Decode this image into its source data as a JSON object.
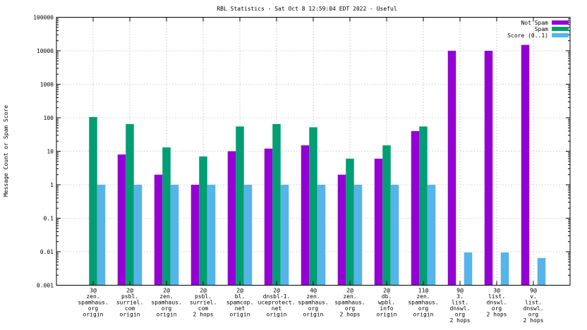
{
  "chart_data": {
    "type": "bar",
    "title": "RBL Statistics - Sat Oct  8 12:59:04 EDT 2022 - Useful",
    "xlabel": "",
    "ylabel": "Message Count or Spam Score",
    "yscale": "log",
    "ylim": [
      0.001,
      100000
    ],
    "yticks": [
      "0.001",
      "0.01",
      "0.1",
      "1",
      "10",
      "100",
      "1000",
      "10000",
      "100000"
    ],
    "legend_position": "top-right",
    "categories": [
      [
        "3@",
        "zen.",
        "spamhaus.",
        "org",
        "origin"
      ],
      [
        "2@",
        "psbl.",
        "surriel.",
        "com",
        "origin"
      ],
      [
        "2@",
        "zen.",
        "spamhaus.",
        "org",
        "origin"
      ],
      [
        "2@",
        "psbl.",
        "surriel.",
        "com",
        "2 hops"
      ],
      [
        "2@",
        "bl.",
        "spamcop.",
        "net",
        "origin"
      ],
      [
        "2@",
        "dnsbl-1.",
        "uceprotect.",
        "net",
        "origin"
      ],
      [
        "4@",
        "zen.",
        "spamhaus.",
        "org",
        "origin"
      ],
      [
        "2@",
        "zen.",
        "spamhaus.",
        "org",
        "2 hops"
      ],
      [
        "2@",
        "db.",
        "wpbl.",
        "info",
        "origin"
      ],
      [
        "11@",
        "zen.",
        "spamhaus.",
        "org",
        "origin"
      ],
      [
        "9@",
        "3.",
        "list.",
        "dnswl.",
        "org",
        "2 hops"
      ],
      [
        "3@",
        "list.",
        "dnswl.",
        "org",
        "2 hops"
      ],
      [
        "9@",
        "v.",
        "list.",
        "dnswl.",
        "org",
        "2 hops"
      ]
    ],
    "series": [
      {
        "name": "Not Spam",
        "color": "#9400d3",
        "values": [
          0,
          8,
          2,
          1,
          10,
          12,
          15,
          2,
          6,
          40,
          10000,
          10000,
          15000
        ]
      },
      {
        "name": "Spam",
        "color": "#009e73",
        "values": [
          105,
          65,
          13,
          7,
          55,
          65,
          52,
          6,
          15,
          55,
          0,
          0,
          0
        ]
      },
      {
        "name": "Score (0..1)",
        "color": "#56b4e9",
        "values": [
          1,
          1,
          1,
          1,
          1,
          1,
          1,
          1,
          1,
          1,
          0.0095,
          0.0095,
          0.0065
        ]
      }
    ]
  }
}
